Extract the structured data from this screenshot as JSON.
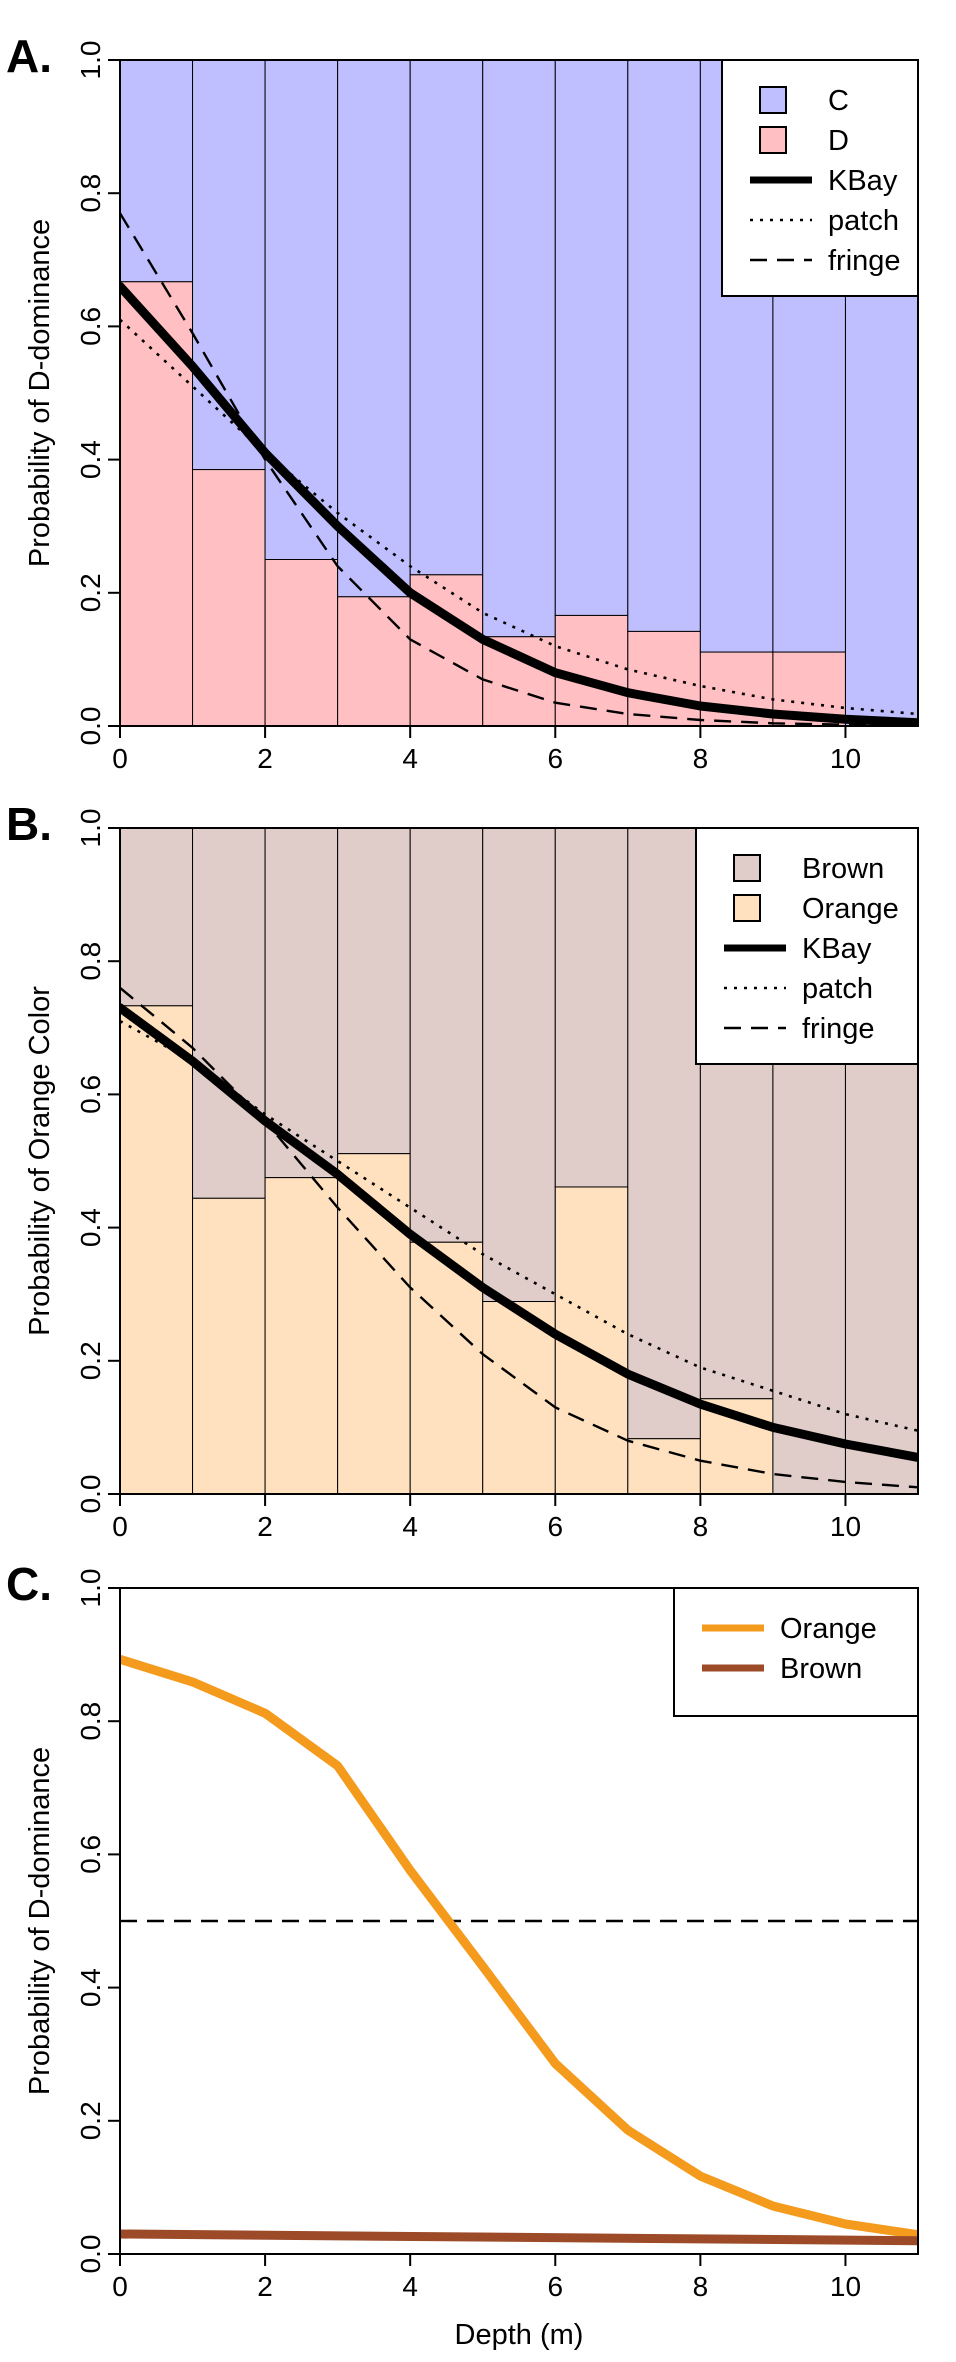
{
  "chart_data": [
    {
      "panel_label": "A.",
      "type": "bar",
      "ylabel": "Probability of D-dominance",
      "xlim": [
        0,
        11
      ],
      "ylim": [
        0,
        1
      ],
      "x_ticks": [
        "0",
        "2",
        "4",
        "6",
        "8",
        "10"
      ],
      "y_ticks": [
        "0.0",
        "0.2",
        "0.4",
        "0.6",
        "0.8",
        "1.0"
      ],
      "bins": [
        [
          0,
          1
        ],
        [
          1,
          2
        ],
        [
          2,
          3
        ],
        [
          3,
          4
        ],
        [
          4,
          5
        ],
        [
          5,
          6
        ],
        [
          6,
          7
        ],
        [
          7,
          8
        ],
        [
          8,
          9
        ],
        [
          9,
          10
        ],
        [
          10,
          11
        ]
      ],
      "bar_values": [
        0.667,
        0.385,
        0.25,
        0.194,
        0.227,
        0.134,
        0.166,
        0.142,
        0.111,
        0.111,
        0.0
      ],
      "bar_colors": {
        "lower": "#ffbfc3",
        "upper": "#bfbfff"
      },
      "legend": {
        "position": "top-right",
        "entries": [
          {
            "label": "C",
            "kind": "box",
            "color": "#bfbfff"
          },
          {
            "label": "D",
            "kind": "box",
            "color": "#ffbfc3"
          },
          {
            "label": "KBay",
            "kind": "solid"
          },
          {
            "label": "patch",
            "kind": "dotted"
          },
          {
            "label": "fringe",
            "kind": "dashed"
          }
        ]
      },
      "curves": [
        {
          "style": "solid",
          "x": [
            0,
            1,
            2,
            3,
            4,
            5,
            6,
            7,
            8,
            9,
            10,
            11
          ],
          "y": [
            0.66,
            0.54,
            0.41,
            0.3,
            0.2,
            0.13,
            0.08,
            0.05,
            0.03,
            0.018,
            0.01,
            0.005
          ]
        },
        {
          "style": "dotted",
          "x": [
            0,
            1,
            2,
            3,
            4,
            5,
            6,
            7,
            8,
            9,
            10,
            11
          ],
          "y": [
            0.61,
            0.51,
            0.41,
            0.32,
            0.24,
            0.17,
            0.12,
            0.085,
            0.06,
            0.04,
            0.027,
            0.018
          ]
        },
        {
          "style": "dashed",
          "x": [
            0,
            1,
            2,
            3,
            4,
            5,
            6,
            7,
            8,
            9,
            10,
            11
          ],
          "y": [
            0.77,
            0.59,
            0.4,
            0.24,
            0.13,
            0.07,
            0.035,
            0.018,
            0.009,
            0.004,
            0.002,
            0.001
          ]
        }
      ]
    },
    {
      "panel_label": "B.",
      "type": "bar",
      "ylabel": "Probability of Orange Color",
      "xlim": [
        0,
        11
      ],
      "ylim": [
        0,
        1
      ],
      "x_ticks": [
        "0",
        "2",
        "4",
        "6",
        "8",
        "10"
      ],
      "y_ticks": [
        "0.0",
        "0.2",
        "0.4",
        "0.6",
        "0.8",
        "1.0"
      ],
      "bins": [
        [
          0,
          1
        ],
        [
          1,
          2
        ],
        [
          2,
          3
        ],
        [
          3,
          4
        ],
        [
          4,
          5
        ],
        [
          5,
          6
        ],
        [
          6,
          7
        ],
        [
          7,
          8
        ],
        [
          8,
          9
        ],
        [
          9,
          10
        ],
        [
          10,
          11
        ]
      ],
      "bar_values": [
        0.733,
        0.444,
        0.475,
        0.511,
        0.378,
        0.289,
        0.461,
        0.083,
        0.143,
        0.0,
        0.0
      ],
      "bar_colors": {
        "lower": "#ffe1bf",
        "upper": "#e0cdc9"
      },
      "legend": {
        "position": "top-right",
        "entries": [
          {
            "label": "Brown",
            "kind": "box",
            "color": "#e0cdc9"
          },
          {
            "label": "Orange",
            "kind": "box",
            "color": "#ffe1bf"
          },
          {
            "label": "KBay",
            "kind": "solid"
          },
          {
            "label": "patch",
            "kind": "dotted"
          },
          {
            "label": "fringe",
            "kind": "dashed"
          }
        ]
      },
      "curves": [
        {
          "style": "solid",
          "x": [
            0,
            1,
            2,
            3,
            4,
            5,
            6,
            7,
            8,
            9,
            10,
            11
          ],
          "y": [
            0.73,
            0.65,
            0.56,
            0.48,
            0.39,
            0.31,
            0.24,
            0.18,
            0.135,
            0.1,
            0.075,
            0.055
          ]
        },
        {
          "style": "dotted",
          "x": [
            0,
            1,
            2,
            3,
            4,
            5,
            6,
            7,
            8,
            9,
            10,
            11
          ],
          "y": [
            0.71,
            0.65,
            0.57,
            0.5,
            0.43,
            0.36,
            0.3,
            0.24,
            0.19,
            0.155,
            0.12,
            0.095
          ]
        },
        {
          "style": "dashed",
          "x": [
            0,
            1,
            2,
            3,
            4,
            5,
            6,
            7,
            8,
            9,
            10,
            11
          ],
          "y": [
            0.76,
            0.67,
            0.56,
            0.43,
            0.31,
            0.21,
            0.13,
            0.08,
            0.05,
            0.03,
            0.018,
            0.01
          ]
        }
      ]
    },
    {
      "panel_label": "C.",
      "type": "line",
      "xlabel": "Depth (m)",
      "ylabel": "Probability of D-dominance",
      "xlim": [
        0,
        11
      ],
      "ylim": [
        0,
        1
      ],
      "x_ticks": [
        "0",
        "2",
        "4",
        "6",
        "8",
        "10"
      ],
      "y_ticks": [
        "0.0",
        "0.2",
        "0.4",
        "0.6",
        "0.8",
        "1.0"
      ],
      "reference_line": {
        "y": 0.5,
        "style": "dashed"
      },
      "legend": {
        "position": "top-right",
        "entries": [
          {
            "label": "Orange",
            "kind": "line",
            "color": "#f49a1c"
          },
          {
            "label": "Brown",
            "kind": "line",
            "color": "#9c4a28"
          }
        ]
      },
      "series": [
        {
          "name": "Orange",
          "color": "#f49a1c",
          "x": [
            0,
            1,
            2,
            3,
            4,
            5,
            6,
            7,
            8,
            9,
            10,
            11
          ],
          "y": [
            0.893,
            0.859,
            0.812,
            0.733,
            0.576,
            0.432,
            0.286,
            0.186,
            0.117,
            0.072,
            0.045,
            0.029
          ]
        },
        {
          "name": "Brown",
          "color": "#9c4a28",
          "x": [
            0,
            11
          ],
          "y": [
            0.03,
            0.02
          ]
        }
      ]
    }
  ]
}
